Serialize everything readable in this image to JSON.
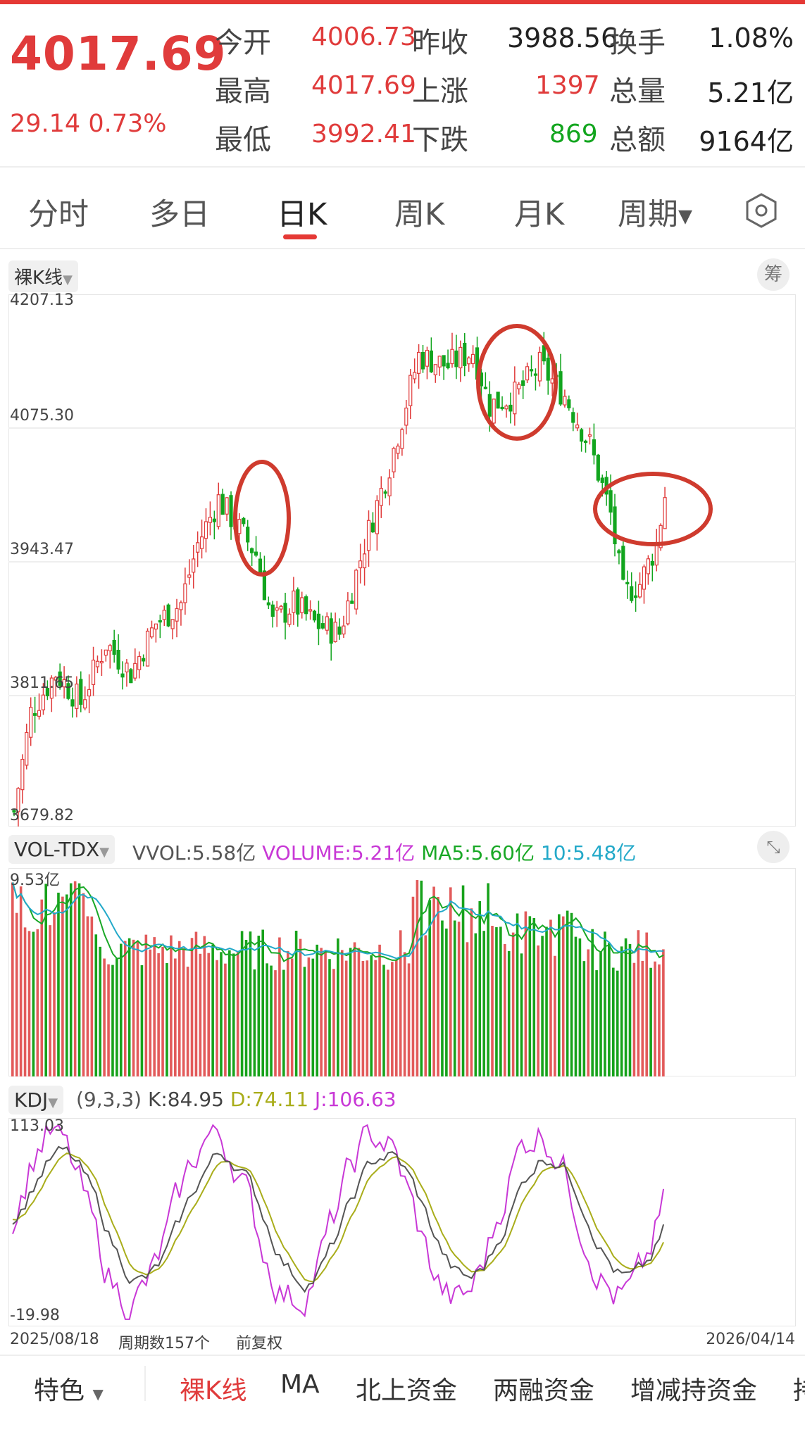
{
  "quote": {
    "price": "4017.69",
    "change": "29.14",
    "change_pct": "0.73%",
    "rows": [
      {
        "l1": "今开",
        "v1": "4006.73",
        "l2": "昨收",
        "v2": "3988.56",
        "l3": "换手",
        "v3": "1.08%"
      },
      {
        "l1": "最高",
        "v1": "4017.69",
        "l2": "上涨",
        "v2": "1397",
        "l3": "总量",
        "v3": "5.21亿"
      },
      {
        "l1": "最低",
        "v1": "3992.41",
        "l2": "下跌",
        "v2": "869",
        "l3": "总额",
        "v3": "9164亿"
      }
    ]
  },
  "tabs": [
    "分时",
    "多日",
    "日K",
    "周K",
    "月K",
    "周期"
  ],
  "active_tab": "日K",
  "kline": {
    "mode_label": "裸K线",
    "chip_label": "筹",
    "y_ticks": [
      "4207.13",
      "4075.30",
      "3943.47",
      "3811.65",
      "3679.82"
    ]
  },
  "volume": {
    "indicator": "VOL-TDX",
    "vvol": "VVOL:5.58亿",
    "volume": "VOLUME:5.21亿",
    "ma5": "MA5:5.60亿",
    "ma10": "10:5.48亿",
    "max_label": "9.53亿"
  },
  "kdj": {
    "indicator": "KDJ",
    "params": "(9,3,3)",
    "k": "K:84.95",
    "d": "D:74.11",
    "j": "J:106.63",
    "top": "113.03",
    "bottom": "-19.98"
  },
  "footer": {
    "start_date": "2025/08/18",
    "period_count": "周期数157个",
    "adjust": "前复权",
    "end_date": "2026/04/14"
  },
  "bottom_bar": [
    "特色",
    "裸K线",
    "MA",
    "北上资金",
    "两融资金",
    "增减持资金",
    "持"
  ],
  "colors": {
    "up": "#e03b3b",
    "down": "#12a51e",
    "accent": "#e53935",
    "ma5": "#19a826",
    "ma10": "#23a9c9",
    "vol_purple": "#c838d6",
    "d_line": "#a9ad1a",
    "j_line": "#c838d6"
  },
  "chart_data": {
    "type": "candlestick",
    "ylim": [
      3679.82,
      4207.13
    ],
    "x_range": [
      "2025/08/18",
      "2026/04/14"
    ],
    "periods": 157,
    "last_close": 4017.69
  }
}
